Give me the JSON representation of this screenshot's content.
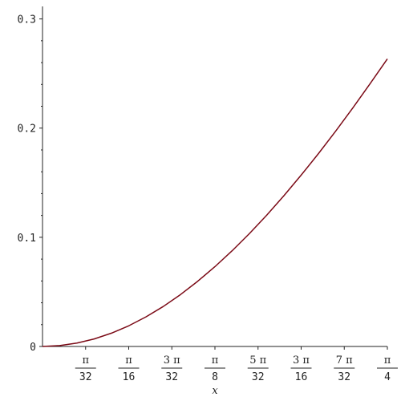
{
  "chart_data": {
    "type": "line",
    "title": "",
    "xlabel": "x",
    "ylabel": "",
    "xlim": [
      0,
      0.7853981634
    ],
    "ylim": [
      0,
      0.31
    ],
    "x_ticks": [
      {
        "value": 0.0981747704,
        "num": "π",
        "den": "32"
      },
      {
        "value": 0.1963495408,
        "num": "π",
        "den": "16"
      },
      {
        "value": 0.2945243113,
        "num": "3 π",
        "den": "32"
      },
      {
        "value": 0.3926990817,
        "num": "π",
        "den": "8"
      },
      {
        "value": 0.4908738521,
        "num": "5 π",
        "den": "32"
      },
      {
        "value": 0.5890486225,
        "num": "3 π",
        "den": "16"
      },
      {
        "value": 0.687223393,
        "num": "7 π",
        "den": "32"
      },
      {
        "value": 0.7853981634,
        "num": "π",
        "den": "4"
      }
    ],
    "y_ticks": [
      {
        "value": 0,
        "label": "0"
      },
      {
        "value": 0.1,
        "label": "0.1"
      },
      {
        "value": 0.2,
        "label": "0.2"
      },
      {
        "value": 0.3,
        "label": "0.3"
      }
    ],
    "series": [
      {
        "color": "#7b0a16",
        "x": [
          0,
          0.0393,
          0.0785,
          0.1178,
          0.1571,
          0.1963,
          0.2356,
          0.2749,
          0.3142,
          0.3534,
          0.3927,
          0.432,
          0.4712,
          0.5105,
          0.5498,
          0.589,
          0.6283,
          0.6676,
          0.7069,
          0.7461,
          0.7854
        ],
        "y": [
          0,
          0.0008,
          0.0031,
          0.0069,
          0.0122,
          0.0189,
          0.0271,
          0.0366,
          0.0475,
          0.0597,
          0.0731,
          0.0877,
          0.1034,
          0.1202,
          0.1381,
          0.1569,
          0.1766,
          0.1972,
          0.2186,
          0.2407,
          0.2634
        ]
      }
    ]
  }
}
